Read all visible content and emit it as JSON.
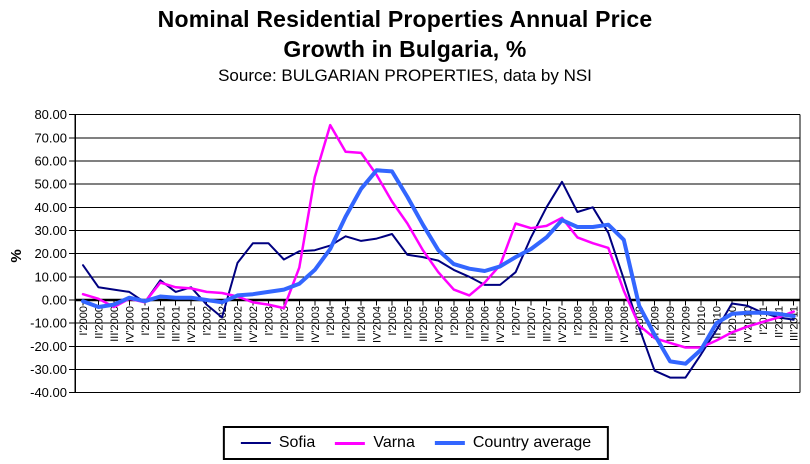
{
  "header": {
    "title_line1": "Nominal Residential Properties Annual Price",
    "title_line2": "Growth in Bulgaria, %",
    "subtitle": "Source: BULGARIAN PROPERTIES, data by NSI"
  },
  "chart_data": {
    "type": "line",
    "title": "Nominal Residential Properties Annual Price Growth in Bulgaria, %",
    "subtitle": "Source: BULGARIAN PROPERTIES, data by NSI",
    "xlabel": "",
    "ylabel": "%",
    "ylim": [
      -40,
      80
    ],
    "ytick_step": 10,
    "ytick_labels": [
      "80.00",
      "70.00",
      "60.00",
      "50.00",
      "40.00",
      "30.00",
      "20.00",
      "10.00",
      "0.00",
      "-10.00",
      "-20.00",
      "-30.00",
      "-40.00"
    ],
    "grid": true,
    "legend_position": "bottom",
    "categories": [
      "I'2000",
      "II'2000",
      "III'2000",
      "IV'2000",
      "I'2001",
      "II'2001",
      "III'2001",
      "IV'2001",
      "I'2002",
      "II'2002",
      "III'2002",
      "IV'2002",
      "I'2003",
      "II'2003",
      "III'2003",
      "IV'2003",
      "I'2004",
      "II'2004",
      "III'2004",
      "IV'2004",
      "I'2005",
      "II'2005",
      "III'2005",
      "IV'2005",
      "I'2006",
      "II'2006",
      "III'2006",
      "IV'2006",
      "I'2007",
      "II'2007",
      "III'2007",
      "IV'2007",
      "I'2008",
      "II'2008",
      "III'2008",
      "IV'2008",
      "I'2009",
      "II'2009",
      "III'2009",
      "IV'2009",
      "I'2010",
      "II'2010",
      "III'2010",
      "IV'2010",
      "I'2011",
      "II'2011",
      "III'2011"
    ],
    "series": [
      {
        "name": "Sofia",
        "color": "#000080",
        "stroke_width": 2,
        "values": [
          15,
          5.5,
          4.5,
          3.5,
          -1,
          8.5,
          3.5,
          5.5,
          -2,
          -7.5,
          16,
          24.5,
          24.5,
          17.5,
          21,
          21.5,
          23.5,
          27.5,
          25.5,
          26.5,
          28.5,
          19.5,
          18.5,
          17,
          13,
          10,
          6.5,
          6.5,
          12,
          27,
          40,
          51,
          38,
          40,
          29,
          9,
          -12,
          -30.5,
          -33.5,
          -33.5,
          -23.5,
          -13,
          -1.5,
          -2.5,
          -5.5,
          -7.5,
          -8.5
        ]
      },
      {
        "name": "Varna",
        "color": "#FF00FF",
        "stroke_width": 2.5,
        "values": [
          2.5,
          0.5,
          -3,
          0.5,
          -1,
          7.5,
          5.5,
          5,
          3.5,
          3,
          1.5,
          -1,
          -2,
          -3.5,
          14,
          53,
          75.5,
          64,
          63.5,
          54,
          42.5,
          33,
          21.5,
          12,
          4.5,
          2,
          7.5,
          15,
          33,
          31,
          32,
          35.5,
          27,
          24.5,
          22.5,
          4,
          -11,
          -16.5,
          -18.5,
          -20.5,
          -20.5,
          -17.5,
          -14,
          -11.5,
          -9.5,
          -7.5,
          -5
        ]
      },
      {
        "name": "Country average",
        "color": "#3366FF",
        "stroke_width": 4,
        "values": [
          -0.5,
          -3,
          -2,
          1,
          -0.5,
          1.5,
          1,
          1,
          0,
          -1,
          2,
          2.5,
          3.5,
          4.5,
          7,
          13,
          22,
          36,
          48,
          56,
          55.5,
          44.5,
          32.5,
          21.5,
          15.5,
          13.5,
          12.5,
          14.5,
          18.5,
          22,
          27,
          34.5,
          31.5,
          31.5,
          32.5,
          26,
          -2.5,
          -15,
          -26.5,
          -27.5,
          -21.5,
          -10,
          -6,
          -5.5,
          -5.5,
          -6,
          -7
        ]
      }
    ]
  }
}
